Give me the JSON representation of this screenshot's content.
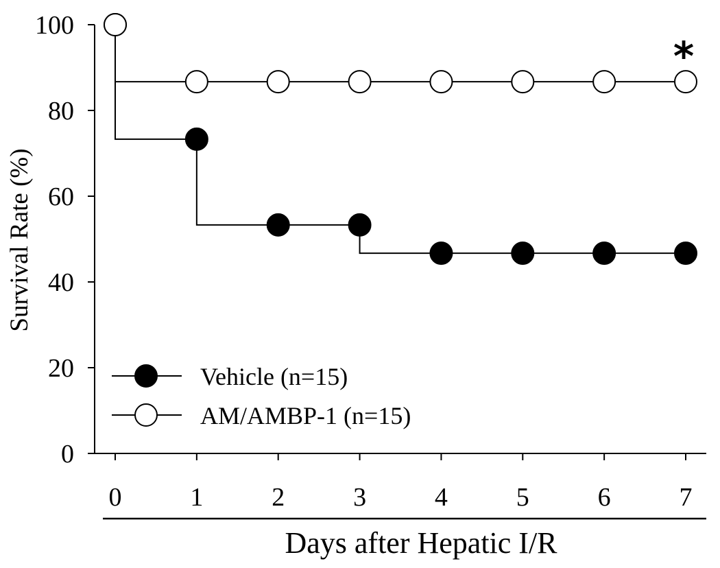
{
  "chart_data": {
    "type": "line",
    "subtype": "kaplan-meier step survival curve",
    "title": "",
    "xlabel": "Days after Hepatic I/R",
    "ylabel": "Survival Rate (%)",
    "x": [
      0,
      1,
      2,
      3,
      4,
      5,
      6,
      7
    ],
    "xticks": [
      "0",
      "1",
      "2",
      "3",
      "4",
      "5",
      "6",
      "7"
    ],
    "yticks": [
      "0",
      "20",
      "40",
      "60",
      "80",
      "100"
    ],
    "xlim": [
      0,
      7
    ],
    "ylim": [
      0,
      100
    ],
    "grid": false,
    "legend_position": "lower left",
    "series": [
      {
        "name": "Vehicle (n=15)",
        "marker": "filled-circle",
        "color": "#000000",
        "values": [
          100,
          73.3,
          53.3,
          53.3,
          46.7,
          46.7,
          46.7,
          46.7
        ]
      },
      {
        "name": "AM/AMBP-1 (n=15)",
        "marker": "open-circle",
        "color": "#000000",
        "values": [
          100,
          86.7,
          86.7,
          86.7,
          86.7,
          86.7,
          86.7,
          86.7
        ]
      }
    ],
    "annotations": [
      {
        "text": "*",
        "x": 7,
        "y": 86.7,
        "meaning": "significance marker above AM/AMBP-1 day 7"
      }
    ]
  },
  "labels": {
    "xlabel": "Days after Hepatic I/R",
    "ylabel": "Survival Rate (%)",
    "legend_vehicle": "Vehicle (n=15)",
    "legend_am": "AM/AMBP-1 (n=15)",
    "asterisk": "*"
  }
}
